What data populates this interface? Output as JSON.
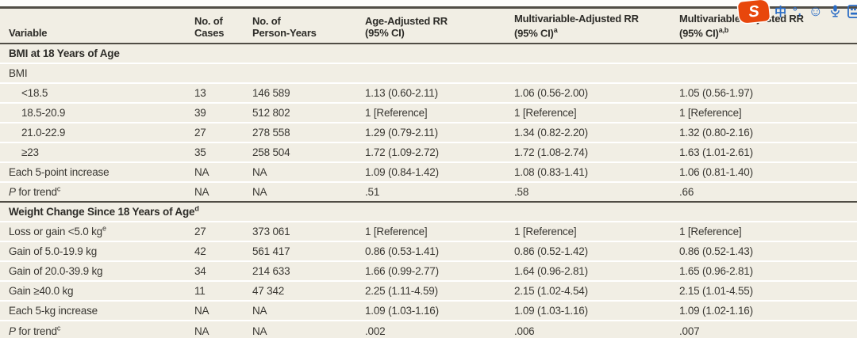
{
  "colors": {
    "dark_rule": "#504d45",
    "row_bg": "#f1eee4",
    "section_bg": "#ece8da",
    "accent_blue": "#2a6cc5",
    "accent_orange": "#e8470c"
  },
  "ime_toolbar": {
    "logo_text": "S",
    "lang_label": "中",
    "punct_label": "°,",
    "emoji_label": "☺",
    "voice_icon": "microphone-icon",
    "toolbox_icon": "keyboard-icon"
  },
  "table": {
    "columns": [
      {
        "line1": "",
        "line2": "Variable",
        "sup": ""
      },
      {
        "line1": "No. of",
        "line2": "Cases",
        "sup": ""
      },
      {
        "line1": "No. of",
        "line2": "Person-Years",
        "sup": ""
      },
      {
        "line1": "Age-Adjusted RR",
        "line2": "(95% CI)",
        "sup": ""
      },
      {
        "line1": "Multivariable-Adjusted RR",
        "line2": "(95% CI)",
        "sup": "a"
      },
      {
        "line1": "Multivariable-Adjusted RR",
        "line2": "(95% CI)",
        "sup": "a,b"
      }
    ],
    "rows": [
      {
        "type": "section",
        "label": "BMI at 18 Years of Age",
        "sup": ""
      },
      {
        "type": "data",
        "indent": 0,
        "label": "BMI",
        "sup": "",
        "cells": [
          "",
          "",
          "",
          "",
          ""
        ]
      },
      {
        "type": "data",
        "indent": 1,
        "label": "<18.5",
        "sup": "",
        "cells": [
          "13",
          "146 589",
          "1.13 (0.60-2.11)",
          "1.06 (0.56-2.00)",
          "1.05 (0.56-1.97)"
        ]
      },
      {
        "type": "data",
        "indent": 1,
        "label": "18.5-20.9",
        "sup": "",
        "cells": [
          "39",
          "512 802",
          "1 [Reference]",
          "1 [Reference]",
          "1 [Reference]"
        ]
      },
      {
        "type": "data",
        "indent": 1,
        "label": "21.0-22.9",
        "sup": "",
        "cells": [
          "27",
          "278 558",
          "1.29 (0.79-2.11)",
          "1.34 (0.82-2.20)",
          "1.32 (0.80-2.16)"
        ]
      },
      {
        "type": "data",
        "indent": 1,
        "label": "≥23",
        "sup": "",
        "cells": [
          "35",
          "258 504",
          "1.72 (1.09-2.72)",
          "1.72 (1.08-2.74)",
          "1.63 (1.01-2.61)"
        ]
      },
      {
        "type": "data",
        "indent": 0,
        "label": "Each 5-point increase",
        "sup": "",
        "cells": [
          "NA",
          "NA",
          "1.09 (0.84-1.42)",
          "1.08 (0.83-1.41)",
          "1.06 (0.81-1.40)"
        ]
      },
      {
        "type": "data",
        "indent": 0,
        "label_prefix_italic": "P",
        "label": " for trend",
        "sup": "c",
        "cells": [
          "NA",
          "NA",
          ".51",
          ".58",
          ".66"
        ]
      },
      {
        "type": "section",
        "label": "Weight Change Since 18 Years of Age",
        "sup": "d",
        "rule_before": true
      },
      {
        "type": "data",
        "indent": 0,
        "label": "Loss or gain <5.0 kg",
        "sup": "e",
        "cells": [
          "27",
          "373 061",
          "1 [Reference]",
          "1 [Reference]",
          "1 [Reference]"
        ]
      },
      {
        "type": "data",
        "indent": 0,
        "label": "Gain of 5.0-19.9 kg",
        "sup": "",
        "cells": [
          "42",
          "561 417",
          "0.86 (0.53-1.41)",
          "0.86 (0.52-1.42)",
          "0.86 (0.52-1.43)"
        ]
      },
      {
        "type": "data",
        "indent": 0,
        "label": "Gain of 20.0-39.9 kg",
        "sup": "",
        "cells": [
          "34",
          "214 633",
          "1.66 (0.99-2.77)",
          "1.64 (0.96-2.81)",
          "1.65 (0.96-2.81)"
        ]
      },
      {
        "type": "data",
        "indent": 0,
        "label": "Gain ≥40.0 kg",
        "sup": "",
        "cells": [
          "11",
          "47 342",
          "2.25 (1.11-4.59)",
          "2.15 (1.02-4.54)",
          "2.15 (1.01-4.55)"
        ]
      },
      {
        "type": "data",
        "indent": 0,
        "label": "Each 5-kg increase",
        "sup": "",
        "cells": [
          "NA",
          "NA",
          "1.09 (1.03-1.16)",
          "1.09 (1.03-1.16)",
          "1.09 (1.02-1.16)"
        ]
      },
      {
        "type": "data",
        "indent": 0,
        "label_prefix_italic": "P",
        "label": " for trend",
        "sup": "c",
        "cells": [
          "NA",
          "NA",
          ".002",
          ".006",
          ".007"
        ]
      }
    ]
  }
}
